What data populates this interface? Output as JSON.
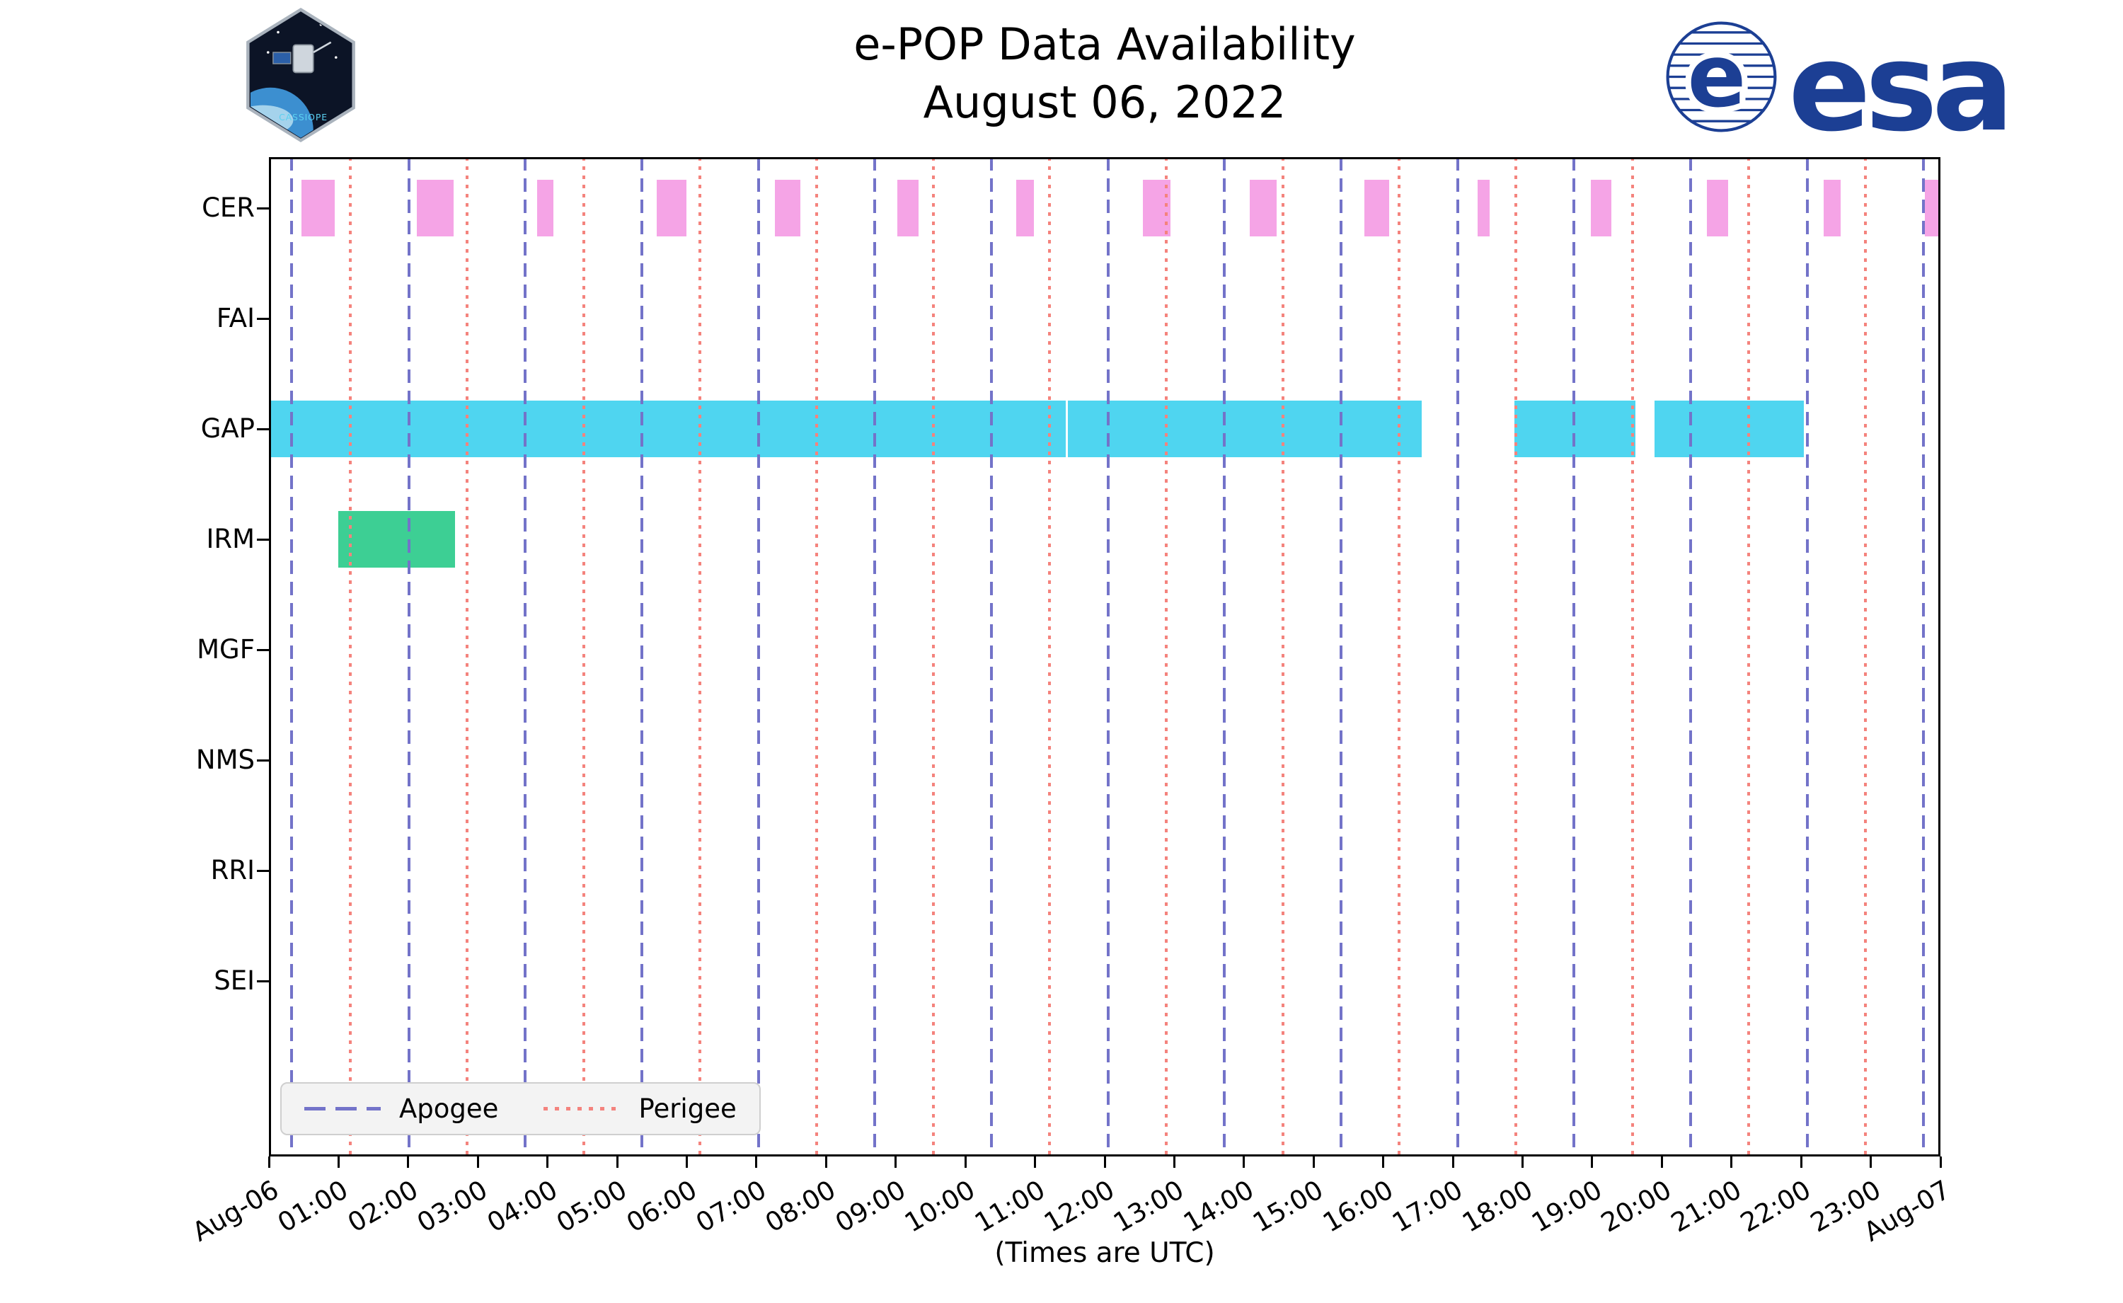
{
  "header": {
    "cassiope_patch_label": "CASSIOPE",
    "esa_wordmark": "esa"
  },
  "chart_data": {
    "type": "gantt",
    "title": "e-POP Data Availability",
    "subtitle": "August 06, 2022",
    "xlabel": "(Times are UTC)",
    "x_axis": {
      "start_hour": 0,
      "end_hour": 24,
      "tick_every_hours": 1,
      "tick_labels": [
        "Aug-06",
        "01:00",
        "02:00",
        "03:00",
        "04:00",
        "05:00",
        "06:00",
        "07:00",
        "08:00",
        "09:00",
        "10:00",
        "11:00",
        "12:00",
        "13:00",
        "14:00",
        "15:00",
        "16:00",
        "17:00",
        "18:00",
        "19:00",
        "20:00",
        "21:00",
        "22:00",
        "23:00",
        "Aug-07"
      ]
    },
    "y_axis": {
      "instruments": [
        "CER",
        "FAI",
        "GAP",
        "IRM",
        "MGF",
        "NMS",
        "RRI",
        "SEI"
      ]
    },
    "series": [
      {
        "instrument": "CER",
        "color": "#F5A4E6",
        "segments_hours": [
          [
            0.47,
            0.95
          ],
          [
            2.12,
            2.65
          ],
          [
            3.85,
            4.08
          ],
          [
            5.57,
            6.0
          ],
          [
            7.27,
            7.63
          ],
          [
            9.02,
            9.33
          ],
          [
            10.73,
            10.98
          ],
          [
            12.55,
            12.95
          ],
          [
            14.08,
            14.47
          ],
          [
            15.73,
            16.08
          ],
          [
            17.35,
            17.53
          ],
          [
            18.98,
            19.28
          ],
          [
            20.65,
            20.95
          ],
          [
            22.32,
            22.57
          ],
          [
            23.78,
            24.0
          ]
        ]
      },
      {
        "instrument": "FAI",
        "color": null,
        "segments_hours": []
      },
      {
        "instrument": "GAP",
        "color": "#4FD5F0",
        "segments_hours": [
          [
            0.0,
            11.44
          ],
          [
            11.47,
            16.55
          ],
          [
            17.88,
            19.62
          ],
          [
            19.9,
            22.04
          ]
        ]
      },
      {
        "instrument": "IRM",
        "color": "#3DCF94",
        "segments_hours": [
          [
            1.0,
            2.67
          ]
        ]
      },
      {
        "instrument": "MGF",
        "color": null,
        "segments_hours": []
      },
      {
        "instrument": "NMS",
        "color": null,
        "segments_hours": []
      },
      {
        "instrument": "RRI",
        "color": null,
        "segments_hours": []
      },
      {
        "instrument": "SEI",
        "color": null,
        "segments_hours": []
      }
    ],
    "orbit_events": {
      "apogee": {
        "label": "Apogee",
        "line_style": "dashed",
        "color": "#7373C9",
        "times_hours": [
          0.33,
          2.01,
          3.68,
          5.35,
          7.03,
          8.7,
          10.37,
          12.05,
          13.72,
          15.39,
          17.07,
          18.74,
          20.41,
          22.09,
          23.76
        ]
      },
      "perigee": {
        "label": "Perigee",
        "line_style": "dotted",
        "color": "#F4837D",
        "times_hours": [
          1.17,
          2.84,
          4.52,
          6.19,
          7.86,
          9.54,
          11.21,
          12.88,
          14.56,
          16.23,
          17.9,
          19.58,
          21.25,
          22.92
        ]
      }
    },
    "legend": {
      "position": "lower left",
      "entries": [
        "Apogee",
        "Perigee"
      ]
    }
  }
}
